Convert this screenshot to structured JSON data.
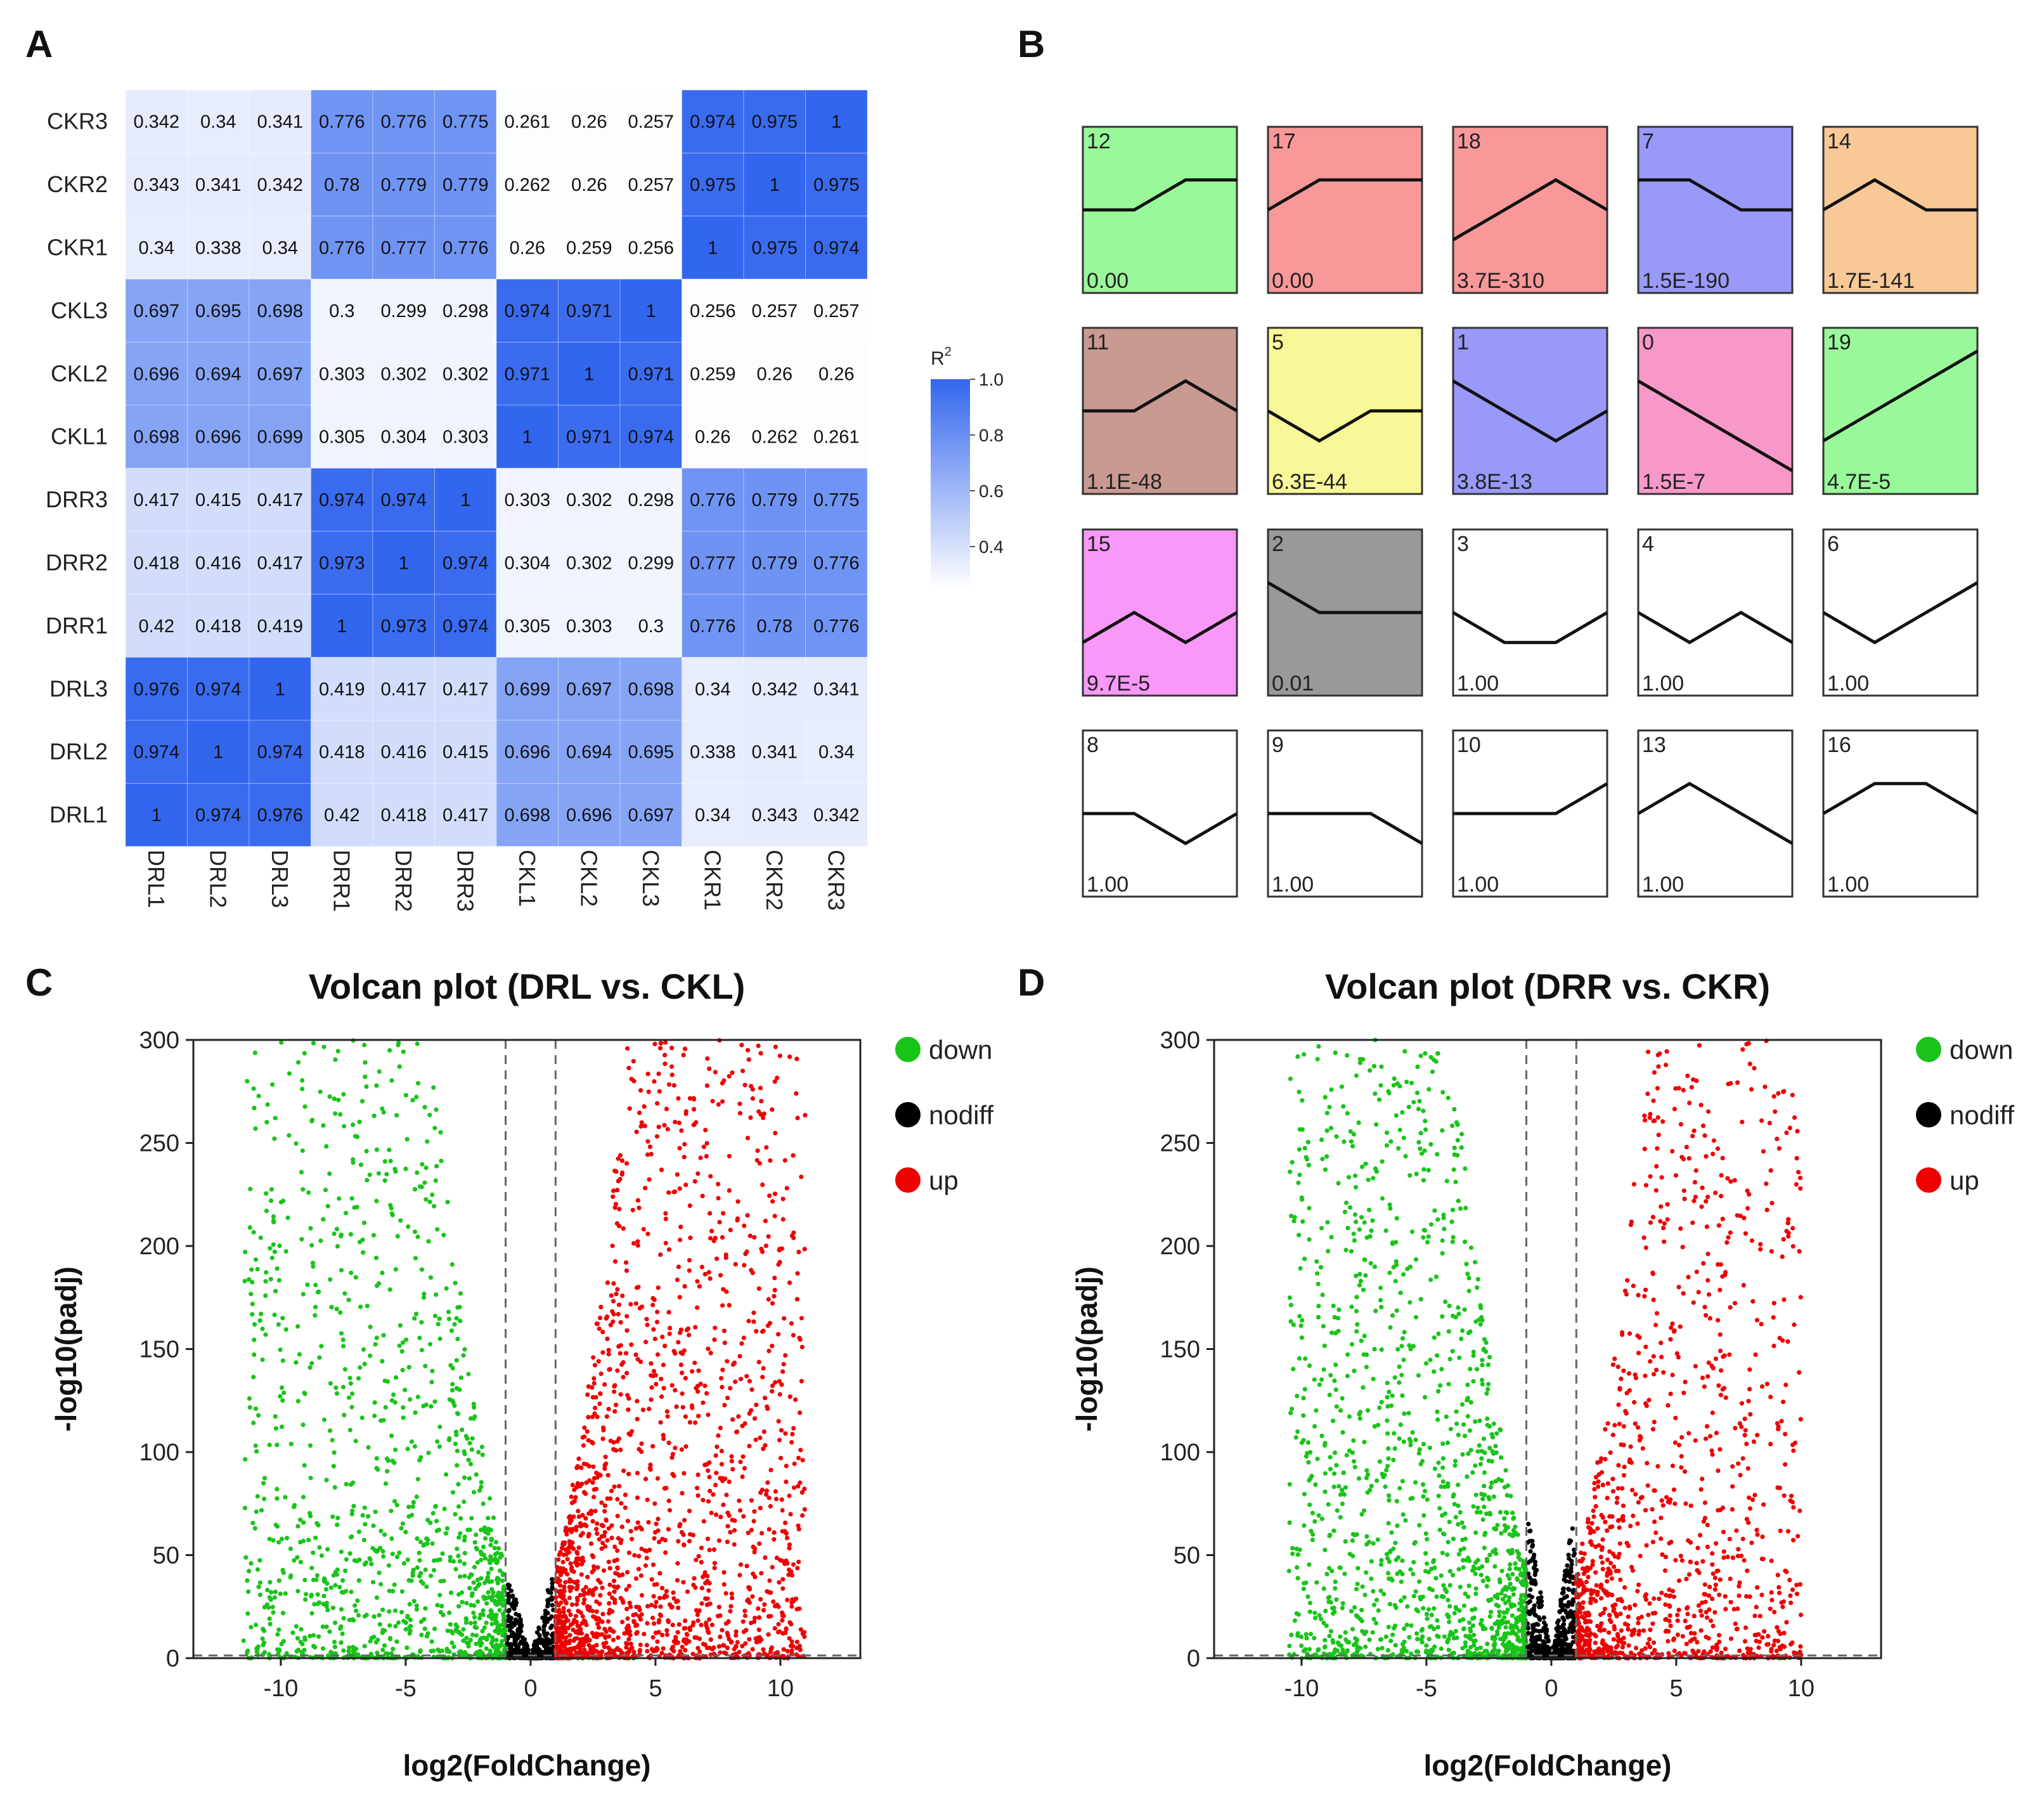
{
  "panel_labels": {
    "a": "A",
    "b": "B",
    "c": "C",
    "d": "D"
  },
  "chart_data": [
    {
      "panel": "A",
      "type": "heatmap",
      "title": "",
      "row_labels": [
        "CKR3",
        "CKR2",
        "CKR1",
        "CKL3",
        "CKL2",
        "CKL1",
        "DRR3",
        "DRR2",
        "DRR1",
        "DRL3",
        "DRL2",
        "DRL1"
      ],
      "col_labels": [
        "DRL1",
        "DRL2",
        "DRL3",
        "DRR1",
        "DRR2",
        "DRR3",
        "CKL1",
        "CKL2",
        "CKL3",
        "CKR1",
        "CKR2",
        "CKR3"
      ],
      "cell_labels": [
        [
          "0.342",
          "0.34",
          "0.341",
          "0.776",
          "0.776",
          "0.775",
          "0.261",
          "0.26",
          "0.257",
          "0.974",
          "0.975",
          "1"
        ],
        [
          "0.343",
          "0.341",
          "0.342",
          "0.78",
          "0.779",
          "0.779",
          "0.262",
          "0.26",
          "0.257",
          "0.975",
          "1",
          "0.975"
        ],
        [
          "0.34",
          "0.338",
          "0.34",
          "0.776",
          "0.777",
          "0.776",
          "0.26",
          "0.259",
          "0.256",
          "1",
          "0.975",
          "0.974"
        ],
        [
          "0.697",
          "0.695",
          "0.698",
          "0.3",
          "0.299",
          "0.298",
          "0.974",
          "0.971",
          "1",
          "0.256",
          "0.257",
          "0.257"
        ],
        [
          "0.696",
          "0.694",
          "0.697",
          "0.303",
          "0.302",
          "0.302",
          "0.971",
          "1",
          "0.971",
          "0.259",
          "0.26",
          "0.26"
        ],
        [
          "0.698",
          "0.696",
          "0.699",
          "0.305",
          "0.304",
          "0.303",
          "1",
          "0.971",
          "0.974",
          "0.26",
          "0.262",
          "0.261"
        ],
        [
          "0.417",
          "0.415",
          "0.417",
          "0.974",
          "0.974",
          "1",
          "0.303",
          "0.302",
          "0.298",
          "0.776",
          "0.779",
          "0.775"
        ],
        [
          "0.418",
          "0.416",
          "0.417",
          "0.973",
          "1",
          "0.974",
          "0.304",
          "0.302",
          "0.299",
          "0.777",
          "0.779",
          "0.776"
        ],
        [
          "0.42",
          "0.418",
          "0.419",
          "1",
          "0.973",
          "0.974",
          "0.305",
          "0.303",
          "0.3",
          "0.776",
          "0.78",
          "0.776"
        ],
        [
          "0.976",
          "0.974",
          "1",
          "0.419",
          "0.417",
          "0.417",
          "0.699",
          "0.697",
          "0.698",
          "0.34",
          "0.342",
          "0.341"
        ],
        [
          "0.974",
          "1",
          "0.974",
          "0.418",
          "0.416",
          "0.415",
          "0.696",
          "0.694",
          "0.695",
          "0.338",
          "0.341",
          "0.34"
        ],
        [
          "1",
          "0.974",
          "0.976",
          "0.42",
          "0.418",
          "0.417",
          "0.698",
          "0.696",
          "0.697",
          "0.34",
          "0.343",
          "0.342"
        ]
      ],
      "legend": {
        "title": "R",
        "title_superscript": "2",
        "ticks": [
          "1.0",
          "0.8",
          "0.6",
          "0.4"
        ],
        "range": [
          0.25,
          1.0
        ],
        "low_color": "#ffffff",
        "high_color": "#3366ee"
      }
    },
    {
      "panel": "B",
      "type": "profile-grid",
      "title": "",
      "time_points": 4,
      "profiles": [
        {
          "id": "12",
          "pvalue": "0.00",
          "color": "#99f899",
          "values": [
            1,
            1,
            2,
            2
          ]
        },
        {
          "id": "17",
          "pvalue": "0.00",
          "color": "#f89898",
          "values": [
            1,
            2,
            2,
            2
          ]
        },
        {
          "id": "18",
          "pvalue": "3.7E-310",
          "color": "#f89898",
          "values": [
            0,
            1,
            2,
            1
          ]
        },
        {
          "id": "7",
          "pvalue": "1.5E-190",
          "color": "#9999f9",
          "values": [
            2,
            2,
            1,
            1
          ]
        },
        {
          "id": "14",
          "pvalue": "1.7E-141",
          "color": "#f8c896",
          "values": [
            1,
            2,
            1,
            1
          ]
        },
        {
          "id": "11",
          "pvalue": "1.1E-48",
          "color": "#c89a92",
          "values": [
            1,
            1,
            2,
            1
          ]
        },
        {
          "id": "5",
          "pvalue": "6.3E-44",
          "color": "#f8f898",
          "values": [
            1,
            0,
            1,
            1
          ]
        },
        {
          "id": "1",
          "pvalue": "3.8E-13",
          "color": "#9999f9",
          "values": [
            2,
            1,
            0,
            1
          ]
        },
        {
          "id": "0",
          "pvalue": "1.5E-7",
          "color": "#f898c8",
          "values": [
            2,
            1,
            0,
            -1
          ]
        },
        {
          "id": "19",
          "pvalue": "4.7E-5",
          "color": "#99f899",
          "values": [
            0,
            1,
            2,
            3
          ]
        },
        {
          "id": "15",
          "pvalue": "9.7E-5",
          "color": "#f898f8",
          "values": [
            0,
            1,
            0,
            1
          ]
        },
        {
          "id": "2",
          "pvalue": "0.01",
          "color": "#999999",
          "values": [
            2,
            1,
            1,
            1
          ]
        },
        {
          "id": "3",
          "pvalue": "1.00",
          "color": "#ffffff",
          "values": [
            1,
            0,
            0,
            1
          ]
        },
        {
          "id": "4",
          "pvalue": "1.00",
          "color": "#ffffff",
          "values": [
            1,
            0,
            1,
            0
          ]
        },
        {
          "id": "6",
          "pvalue": "1.00",
          "color": "#ffffff",
          "values": [
            1,
            0,
            1,
            2
          ]
        },
        {
          "id": "8",
          "pvalue": "1.00",
          "color": "#ffffff",
          "values": [
            1,
            1,
            0,
            1
          ]
        },
        {
          "id": "9",
          "pvalue": "1.00",
          "color": "#ffffff",
          "values": [
            1,
            1,
            1,
            0
          ]
        },
        {
          "id": "10",
          "pvalue": "1.00",
          "color": "#ffffff",
          "values": [
            1,
            1,
            1,
            2
          ]
        },
        {
          "id": "13",
          "pvalue": "1.00",
          "color": "#ffffff",
          "values": [
            1,
            2,
            1,
            0
          ]
        },
        {
          "id": "16",
          "pvalue": "1.00",
          "color": "#ffffff",
          "values": [
            1,
            2,
            2,
            1
          ]
        }
      ]
    },
    {
      "panel": "C",
      "type": "scatter",
      "title": "Volcan plot (DRL vs. CKL)",
      "xlabel": "log2(FoldChange)",
      "ylabel": "-log10(padj)",
      "xlim": [
        -13.5,
        13.2
      ],
      "ylim": [
        0,
        300
      ],
      "xticks": [
        "-10",
        "-5",
        "0",
        "5",
        "10"
      ],
      "xtick_values": [
        -10,
        -5,
        0,
        5,
        10
      ],
      "yticks": [
        "0",
        "50",
        "100",
        "150",
        "200",
        "250",
        "300"
      ],
      "ytick_values": [
        0,
        50,
        100,
        150,
        200,
        250,
        300
      ],
      "threshold_lines": {
        "log2fc": [
          -1,
          1
        ],
        "neg_log10_padj": 1.3
      },
      "legend_position": "right",
      "series": [
        {
          "name": "down",
          "color": "#19c419",
          "approx_count": 6000,
          "x_range": [
            -11.5,
            -1
          ],
          "y_range": [
            0,
            300
          ]
        },
        {
          "name": "nodiff",
          "color": "#000000",
          "approx_count": 2000,
          "x_range": [
            -1,
            1
          ],
          "y_range": [
            0,
            40
          ]
        },
        {
          "name": "up",
          "color": "#ee0000",
          "approx_count": 8500,
          "x_range": [
            1,
            11
          ],
          "y_range": [
            0,
            300
          ]
        }
      ]
    },
    {
      "panel": "D",
      "type": "scatter",
      "title": "Volcan plot (DRR vs. CKR)",
      "xlabel": "log2(FoldChange)",
      "ylabel": "-log10(padj)",
      "xlim": [
        -13.5,
        13.2
      ],
      "ylim": [
        0,
        300
      ],
      "xticks": [
        "-10",
        "-5",
        "0",
        "5",
        "10"
      ],
      "xtick_values": [
        -10,
        -5,
        0,
        5,
        10
      ],
      "yticks": [
        "0",
        "50",
        "100",
        "150",
        "200",
        "250",
        "300"
      ],
      "ytick_values": [
        0,
        50,
        100,
        150,
        200,
        250,
        300
      ],
      "threshold_lines": {
        "log2fc": [
          -1,
          1
        ],
        "neg_log10_padj": 1.3
      },
      "legend_position": "right",
      "series": [
        {
          "name": "down",
          "color": "#19c419",
          "approx_count": 7000,
          "x_range": [
            -10.5,
            -1
          ],
          "y_range": [
            0,
            300
          ]
        },
        {
          "name": "nodiff",
          "color": "#000000",
          "approx_count": 2500,
          "x_range": [
            -1,
            1
          ],
          "y_range": [
            0,
            65
          ]
        },
        {
          "name": "up",
          "color": "#ee0000",
          "approx_count": 5500,
          "x_range": [
            1,
            10
          ],
          "y_range": [
            0,
            300
          ]
        }
      ]
    }
  ]
}
